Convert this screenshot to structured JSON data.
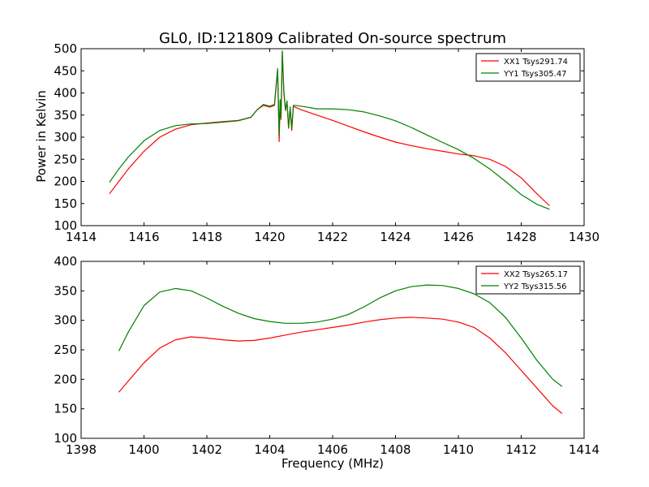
{
  "chart_data": [
    {
      "type": "line",
      "title": "GL0, ID:121809 Calibrated On-source spectrum",
      "xlabel": "",
      "ylabel": "Power in Kelvin",
      "xlim": [
        1414,
        1430
      ],
      "ylim": [
        100,
        500
      ],
      "xticks": [
        1414,
        1416,
        1418,
        1420,
        1422,
        1424,
        1426,
        1428,
        1430
      ],
      "yticks": [
        100,
        150,
        200,
        250,
        300,
        350,
        400,
        450,
        500
      ],
      "legend": "top-right",
      "grid": false,
      "series": [
        {
          "name": "XX1 Tsys291.74",
          "color": "#ff0000",
          "x": [
            1414.9,
            1415.2,
            1415.5,
            1416.0,
            1416.5,
            1417.0,
            1417.5,
            1418.0,
            1418.5,
            1419.0,
            1419.4,
            1419.6,
            1419.8,
            1420.0,
            1420.15,
            1420.25,
            1420.3,
            1420.33,
            1420.36,
            1420.4,
            1420.45,
            1420.5,
            1420.55,
            1420.6,
            1420.65,
            1420.7,
            1420.75,
            1420.8,
            1421.0,
            1421.5,
            1422.0,
            1422.5,
            1423.0,
            1423.5,
            1424.0,
            1424.5,
            1425.0,
            1425.5,
            1426.0,
            1426.5,
            1427.0,
            1427.5,
            1428.0,
            1428.5,
            1428.9
          ],
          "y": [
            172,
            200,
            228,
            268,
            300,
            318,
            328,
            332,
            335,
            338,
            345,
            362,
            372,
            368,
            372,
            450,
            290,
            380,
            340,
            492,
            400,
            360,
            380,
            320,
            365,
            315,
            370,
            368,
            362,
            350,
            338,
            325,
            312,
            300,
            289,
            281,
            274,
            268,
            262,
            258,
            250,
            234,
            208,
            172,
            145
          ]
        },
        {
          "name": "YY1 Tsys305.47",
          "color": "#008000",
          "x": [
            1414.9,
            1415.2,
            1415.5,
            1416.0,
            1416.5,
            1417.0,
            1417.5,
            1418.0,
            1418.5,
            1419.0,
            1419.4,
            1419.6,
            1419.8,
            1420.0,
            1420.15,
            1420.25,
            1420.3,
            1420.33,
            1420.36,
            1420.4,
            1420.45,
            1420.5,
            1420.55,
            1420.6,
            1420.65,
            1420.7,
            1420.75,
            1420.8,
            1421.0,
            1421.5,
            1422.0,
            1422.5,
            1423.0,
            1423.5,
            1424.0,
            1424.5,
            1425.0,
            1425.5,
            1426.0,
            1426.5,
            1427.0,
            1427.5,
            1428.0,
            1428.5,
            1428.9
          ],
          "y": [
            198,
            228,
            255,
            292,
            315,
            326,
            330,
            331,
            334,
            337,
            345,
            362,
            374,
            370,
            374,
            455,
            305,
            385,
            345,
            495,
            405,
            362,
            382,
            322,
            368,
            318,
            372,
            372,
            370,
            364,
            364,
            362,
            357,
            348,
            337,
            322,
            305,
            288,
            272,
            252,
            228,
            200,
            170,
            148,
            137
          ]
        }
      ]
    },
    {
      "type": "line",
      "title": "",
      "xlabel": "Frequency (MHz)",
      "ylabel": "",
      "xlim": [
        1398,
        1414
      ],
      "ylim": [
        100,
        400
      ],
      "xticks": [
        1398,
        1400,
        1402,
        1404,
        1406,
        1408,
        1410,
        1412,
        1414
      ],
      "yticks": [
        100,
        150,
        200,
        250,
        300,
        350,
        400
      ],
      "legend": "top-right",
      "grid": false,
      "series": [
        {
          "name": "XX2 Tsys265.17",
          "color": "#ff0000",
          "x": [
            1399.2,
            1399.5,
            1400.0,
            1400.5,
            1401.0,
            1401.5,
            1402.0,
            1402.5,
            1403.0,
            1403.5,
            1404.0,
            1404.5,
            1405.0,
            1405.5,
            1406.0,
            1406.5,
            1407.0,
            1407.5,
            1408.0,
            1408.5,
            1409.0,
            1409.5,
            1410.0,
            1410.5,
            1411.0,
            1411.5,
            1412.0,
            1412.5,
            1413.0,
            1413.3
          ],
          "y": [
            178,
            197,
            228,
            253,
            267,
            272,
            270,
            267,
            265,
            266,
            270,
            275,
            280,
            284,
            288,
            292,
            297,
            301,
            304,
            305,
            304,
            302,
            297,
            288,
            270,
            245,
            215,
            185,
            155,
            142
          ]
        },
        {
          "name": "YY2 Tsys315.56",
          "color": "#008000",
          "x": [
            1399.2,
            1399.5,
            1400.0,
            1400.5,
            1401.0,
            1401.5,
            1402.0,
            1402.5,
            1403.0,
            1403.5,
            1404.0,
            1404.5,
            1405.0,
            1405.5,
            1406.0,
            1406.5,
            1407.0,
            1407.5,
            1408.0,
            1408.5,
            1409.0,
            1409.5,
            1410.0,
            1410.5,
            1411.0,
            1411.5,
            1412.0,
            1412.5,
            1413.0,
            1413.3
          ],
          "y": [
            248,
            280,
            325,
            348,
            354,
            350,
            338,
            324,
            312,
            303,
            298,
            295,
            295,
            297,
            302,
            310,
            323,
            338,
            350,
            357,
            360,
            359,
            354,
            345,
            330,
            305,
            270,
            232,
            200,
            188
          ]
        }
      ]
    }
  ]
}
